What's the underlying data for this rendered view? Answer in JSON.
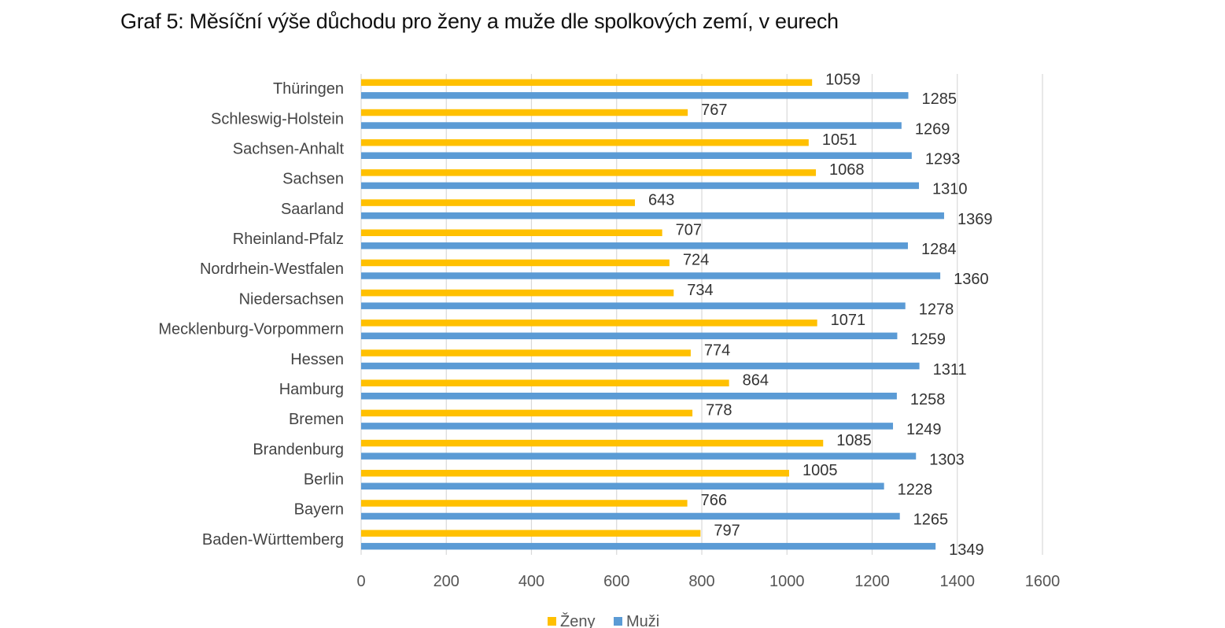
{
  "chart_data": {
    "type": "bar",
    "orientation": "horizontal",
    "title": "Graf 5: Měsíční výše důchodu pro ženy a muže dle spolkových zemí, v eurech",
    "categories": [
      "Thüringen",
      "Schleswig-Holstein",
      "Sachsen-Anhalt",
      "Sachsen",
      "Saarland",
      "Rheinland-Pfalz",
      "Nordrhein-Westfalen",
      "Niedersachsen",
      "Mecklenburg-Vorpommern",
      "Hessen",
      "Hamburg",
      "Bremen",
      "Brandenburg",
      "Berlin",
      "Bayern",
      "Baden-Württemberg"
    ],
    "series": [
      {
        "name": "Ženy",
        "color": "#FFC000",
        "values": [
          1059,
          767,
          1051,
          1068,
          643,
          707,
          724,
          734,
          1071,
          774,
          864,
          778,
          1085,
          1005,
          766,
          797
        ]
      },
      {
        "name": "Muži",
        "color": "#5B9BD5",
        "values": [
          1285,
          1269,
          1293,
          1310,
          1369,
          1284,
          1360,
          1278,
          1259,
          1311,
          1258,
          1249,
          1303,
          1228,
          1265,
          1349
        ]
      }
    ],
    "xlim": [
      0,
      1600
    ],
    "xticks": [
      "0",
      "200",
      "400",
      "600",
      "800",
      "1000",
      "1200",
      "1400",
      "1600"
    ],
    "xlabel": "",
    "ylabel": "",
    "grid": true,
    "legend_position": "bottom",
    "gridline_color": "#D9D9D9"
  }
}
